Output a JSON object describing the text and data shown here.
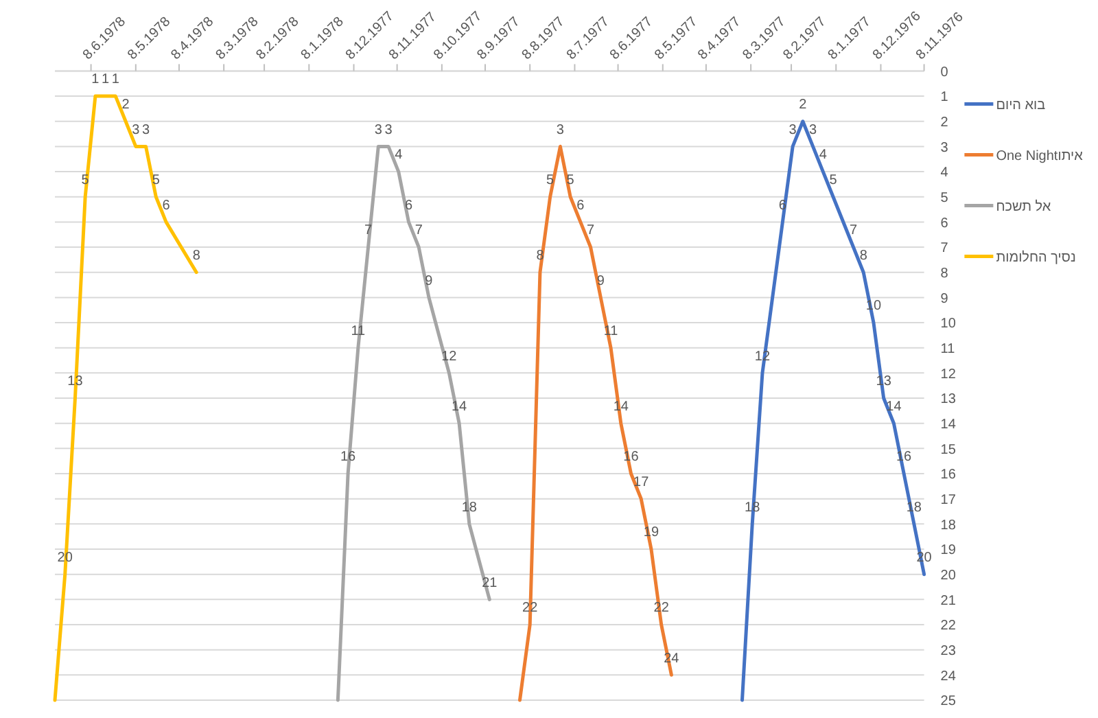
{
  "chart_data": {
    "type": "line",
    "xlim": [
      "1978-07-03",
      "1976-11-08"
    ],
    "xticks": [
      {
        "value": "1976-11-08",
        "label": "8.11.1976"
      },
      {
        "value": "1976-12-08",
        "label": "8.12.1976"
      },
      {
        "value": "1977-01-08",
        "label": "8.1.1977"
      },
      {
        "value": "1977-02-08",
        "label": "8.2.1977"
      },
      {
        "value": "1977-03-08",
        "label": "8.3.1977"
      },
      {
        "value": "1977-04-08",
        "label": "8.4.1977"
      },
      {
        "value": "1977-05-08",
        "label": "8.5.1977"
      },
      {
        "value": "1977-06-08",
        "label": "8.6.1977"
      },
      {
        "value": "1977-07-08",
        "label": "8.7.1977"
      },
      {
        "value": "1977-08-08",
        "label": "8.8.1977"
      },
      {
        "value": "1977-09-08",
        "label": "8.9.1977"
      },
      {
        "value": "1977-10-08",
        "label": "8.10.1977"
      },
      {
        "value": "1977-11-08",
        "label": "8.11.1977"
      },
      {
        "value": "1977-12-08",
        "label": "8.12.1977"
      },
      {
        "value": "1978-01-08",
        "label": "8.1.1978"
      },
      {
        "value": "1978-02-08",
        "label": "8.2.1978"
      },
      {
        "value": "1978-03-08",
        "label": "8.3.1978"
      },
      {
        "value": "1978-04-08",
        "label": "8.4.1978"
      },
      {
        "value": "1978-05-08",
        "label": "8.5.1978"
      },
      {
        "value": "1978-06-08",
        "label": "8.6.1978"
      }
    ],
    "ylim": [
      25,
      0
    ],
    "yticks": [
      0,
      1,
      2,
      3,
      4,
      5,
      6,
      7,
      8,
      9,
      10,
      11,
      12,
      13,
      14,
      15,
      16,
      17,
      18,
      19,
      20,
      21,
      22,
      23,
      24,
      25
    ],
    "grid": "y",
    "legend": "right",
    "series": [
      {
        "name": "בוא היום",
        "color": "#4472c4",
        "x": [
          "1976-11-08",
          "1976-11-15",
          "1976-11-22",
          "1976-11-29",
          "1976-12-06",
          "1976-12-13",
          "1976-12-20",
          "1976-12-27",
          "1977-01-10",
          "1977-01-17",
          "1977-01-24",
          "1977-01-31",
          "1977-02-07",
          "1977-02-14",
          "1977-02-28",
          "1977-03-07",
          "1977-03-14"
        ],
        "values": [
          20,
          18,
          16,
          14,
          13,
          10,
          8,
          7,
          5,
          4,
          3,
          2,
          3,
          6,
          12,
          18,
          25
        ],
        "value_labels": [
          "20",
          "18",
          "16",
          "14",
          "13",
          "10",
          "8",
          "7",
          "5",
          "4",
          "3",
          "2",
          "3",
          "6",
          "12",
          "18",
          null
        ]
      },
      {
        "name": "One Nightאיתו",
        "color": "#ed7d31",
        "x": [
          "1977-05-02",
          "1977-05-09",
          "1977-05-16",
          "1977-05-23",
          "1977-05-30",
          "1977-06-06",
          "1977-06-13",
          "1977-06-20",
          "1977-06-27",
          "1977-07-04",
          "1977-07-11",
          "1977-07-18",
          "1977-07-25",
          "1977-08-01",
          "1977-08-08",
          "1977-08-15"
        ],
        "values": [
          24,
          22,
          19,
          17,
          16,
          14,
          11,
          9,
          7,
          6,
          5,
          3,
          5,
          8,
          22,
          25
        ],
        "value_labels": [
          "24",
          "22",
          "19",
          "17",
          "16",
          "14",
          "11",
          "9",
          "7",
          "6",
          "5",
          "3",
          "5",
          "8",
          "22",
          null
        ]
      },
      {
        "name": "אל תשכח",
        "color": "#a5a5a5",
        "x": [
          "1977-09-05",
          "1977-09-19",
          "1977-09-26",
          "1977-10-03",
          "1977-10-17",
          "1977-10-24",
          "1977-10-31",
          "1977-11-07",
          "1977-11-14",
          "1977-11-21",
          "1977-11-28",
          "1977-12-05",
          "1977-12-12",
          "1977-12-19"
        ],
        "values": [
          21,
          18,
          14,
          12,
          9,
          7,
          6,
          4,
          3,
          3,
          7,
          11,
          16,
          25
        ],
        "value_labels": [
          "21",
          "18",
          "14",
          "12",
          "9",
          "7",
          "6",
          "4",
          "3",
          "3",
          "7",
          "11",
          "16",
          null
        ]
      },
      {
        "name": "נסיך החלומות",
        "color": "#ffc000",
        "x": [
          "1978-03-27",
          "1978-04-17",
          "1978-04-24",
          "1978-05-01",
          "1978-05-08",
          "1978-05-15",
          "1978-05-22",
          "1978-05-29",
          "1978-06-05",
          "1978-06-12",
          "1978-06-19",
          "1978-06-26",
          "1978-07-03"
        ],
        "values": [
          8,
          6,
          5,
          3,
          3,
          2,
          1,
          1,
          1,
          5,
          13,
          20,
          25
        ],
        "value_labels": [
          "8",
          "6",
          "5",
          "3",
          "3",
          "2",
          "1",
          "1",
          "1",
          "5",
          "13",
          "20",
          null
        ]
      }
    ]
  }
}
